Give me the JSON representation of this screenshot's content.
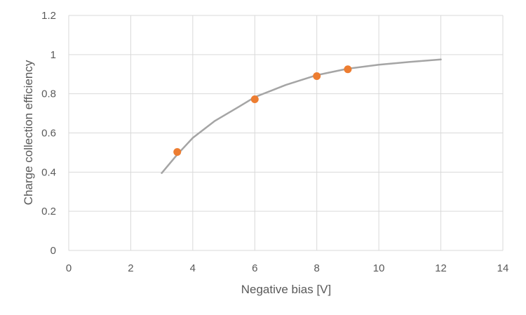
{
  "chart_data": {
    "type": "scatter",
    "xlabel": "Negative bias [V]",
    "ylabel": "Charge collection efficiency",
    "xlim": [
      0,
      14
    ],
    "ylim": [
      0,
      1.2
    ],
    "x_ticks": [
      "0",
      "2",
      "4",
      "6",
      "8",
      "10",
      "12",
      "14"
    ],
    "y_ticks": [
      "0",
      "0.2",
      "0.4",
      "0.6",
      "0.8",
      "1",
      "1.2"
    ],
    "grid": true,
    "series": [
      {
        "kind": "line",
        "color": "#a5a5a5",
        "x": [
          3.0,
          3.5,
          4.0,
          4.7,
          5.5,
          6.0,
          7.0,
          8.0,
          9.0,
          10.0,
          11.0,
          12.0
        ],
        "y": [
          0.395,
          0.49,
          0.575,
          0.66,
          0.735,
          0.783,
          0.845,
          0.895,
          0.928,
          0.948,
          0.963,
          0.975
        ]
      },
      {
        "kind": "markers",
        "color": "#ed7d31",
        "x": [
          3.5,
          6.0,
          8.0,
          9.0
        ],
        "y": [
          0.503,
          0.772,
          0.89,
          0.925
        ]
      }
    ]
  }
}
